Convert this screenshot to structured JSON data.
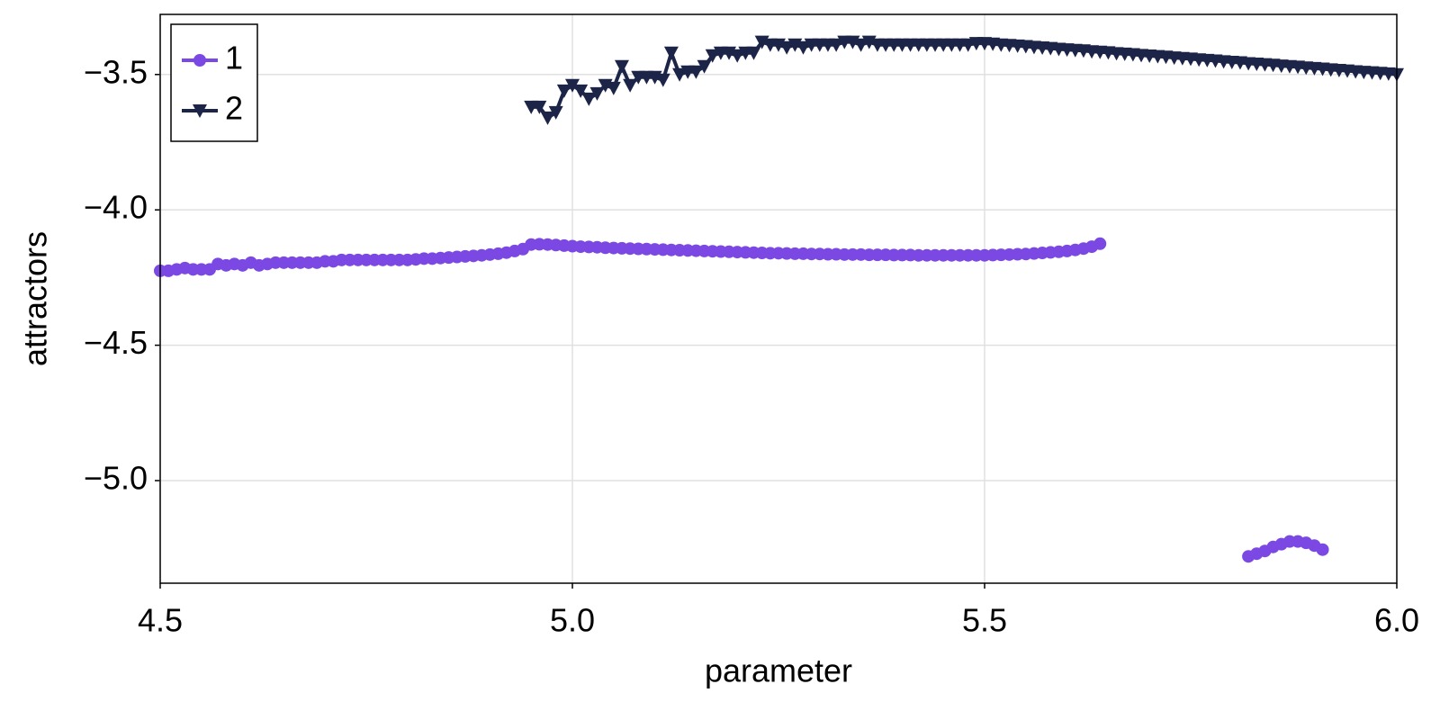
{
  "chart_data": {
    "type": "line",
    "x_label": "parameter",
    "y_label": "attractors",
    "x": [
      4.5,
      4.51,
      4.52,
      4.53,
      4.54,
      4.55,
      4.56,
      4.57,
      4.58,
      4.59,
      4.6,
      4.61,
      4.62,
      4.63,
      4.64,
      4.65,
      4.66,
      4.67,
      4.68,
      4.69,
      4.7,
      4.71,
      4.72,
      4.73,
      4.74,
      4.75,
      4.76,
      4.77,
      4.78,
      4.79,
      4.8,
      4.81,
      4.82,
      4.83,
      4.84,
      4.85,
      4.86,
      4.87,
      4.88,
      4.89,
      4.9,
      4.91,
      4.92,
      4.93,
      4.94,
      4.95,
      4.96,
      4.97,
      4.98,
      4.99,
      5.0,
      5.01,
      5.02,
      5.03,
      5.04,
      5.05,
      5.06,
      5.07,
      5.08,
      5.09,
      5.1,
      5.11,
      5.12,
      5.13,
      5.14,
      5.15,
      5.16,
      5.17,
      5.18,
      5.19,
      5.2,
      5.21,
      5.22,
      5.23,
      5.24,
      5.25,
      5.26,
      5.27,
      5.28,
      5.29,
      5.3,
      5.31,
      5.32,
      5.33,
      5.34,
      5.35,
      5.36,
      5.37,
      5.38,
      5.39,
      5.4,
      5.41,
      5.42,
      5.43,
      5.44,
      5.45,
      5.46,
      5.47,
      5.48,
      5.49,
      5.5,
      5.51,
      5.52,
      5.53,
      5.54,
      5.55,
      5.56,
      5.57,
      5.58,
      5.59,
      5.6,
      5.61,
      5.62,
      5.63,
      5.64,
      5.65,
      5.66,
      5.67,
      5.68,
      5.69,
      5.7,
      5.71,
      5.72,
      5.73,
      5.74,
      5.75,
      5.76,
      5.77,
      5.78,
      5.79,
      5.8,
      5.81,
      5.82,
      5.83,
      5.84,
      5.85,
      5.86,
      5.87,
      5.88,
      5.89,
      5.9,
      5.91,
      5.92,
      5.93,
      5.94,
      5.95,
      5.96,
      5.97,
      5.98,
      5.99,
      6.0
    ],
    "series": [
      {
        "name": "1",
        "color": "#7b48e4",
        "marker": "circle",
        "values": [
          -4.225,
          -4.225,
          -4.22,
          -4.215,
          -4.22,
          -4.22,
          -4.22,
          -4.2,
          -4.205,
          -4.2,
          -4.205,
          -4.195,
          -4.205,
          -4.2,
          -4.195,
          -4.195,
          -4.195,
          -4.195,
          -4.195,
          -4.195,
          -4.19,
          -4.19,
          -4.185,
          -4.185,
          -4.185,
          -4.185,
          -4.185,
          -4.185,
          -4.185,
          -4.185,
          -4.185,
          -4.183,
          -4.18,
          -4.18,
          -4.178,
          -4.176,
          -4.174,
          -4.172,
          -4.17,
          -4.168,
          -4.165,
          -4.162,
          -4.158,
          -4.152,
          -4.145,
          -4.128,
          -4.127,
          -4.128,
          -4.13,
          -4.132,
          -4.134,
          -4.136,
          -4.137,
          -4.138,
          -4.14,
          -4.141,
          -4.142,
          -4.143,
          -4.144,
          -4.145,
          -4.146,
          -4.147,
          -4.148,
          -4.149,
          -4.15,
          -4.151,
          -4.152,
          -4.153,
          -4.154,
          -4.155,
          -4.156,
          -4.157,
          -4.158,
          -4.159,
          -4.16,
          -4.16,
          -4.161,
          -4.162,
          -4.162,
          -4.163,
          -4.163,
          -4.164,
          -4.164,
          -4.165,
          -4.165,
          -4.165,
          -4.166,
          -4.166,
          -4.166,
          -4.167,
          -4.167,
          -4.167,
          -4.168,
          -4.168,
          -4.168,
          -4.168,
          -4.168,
          -4.168,
          -4.168,
          -4.168,
          -4.168,
          -4.167,
          -4.166,
          -4.165,
          -4.164,
          -4.163,
          -4.161,
          -4.159,
          -4.157,
          -4.155,
          -4.152,
          -4.148,
          -4.143,
          -4.136,
          -4.125,
          null,
          null,
          null,
          null,
          null,
          null,
          null,
          null,
          null,
          null,
          null,
          null,
          null,
          null,
          null,
          null,
          null,
          -5.28,
          -5.27,
          -5.26,
          -5.245,
          -5.235,
          -5.225,
          -5.225,
          -5.23,
          -5.24,
          -5.255,
          null,
          null,
          null,
          null,
          null,
          null,
          null,
          null,
          null
        ]
      },
      {
        "name": "2",
        "color": "#1c2448",
        "marker": "triangle-down",
        "values": [
          null,
          null,
          null,
          null,
          null,
          null,
          null,
          null,
          null,
          null,
          null,
          null,
          null,
          null,
          null,
          null,
          null,
          null,
          null,
          null,
          null,
          null,
          null,
          null,
          null,
          null,
          null,
          null,
          null,
          null,
          null,
          null,
          null,
          null,
          null,
          null,
          null,
          null,
          null,
          null,
          null,
          null,
          null,
          null,
          null,
          -3.62,
          -3.62,
          -3.66,
          -3.64,
          -3.56,
          -3.54,
          -3.56,
          -3.59,
          -3.57,
          -3.54,
          -3.55,
          -3.47,
          -3.54,
          -3.51,
          -3.51,
          -3.51,
          -3.52,
          -3.42,
          -3.5,
          -3.49,
          -3.49,
          -3.47,
          -3.43,
          -3.42,
          -3.42,
          -3.43,
          -3.42,
          -3.42,
          -3.38,
          -3.39,
          -3.39,
          -3.4,
          -3.39,
          -3.4,
          -3.39,
          -3.39,
          -3.39,
          -3.39,
          -3.38,
          -3.38,
          -3.39,
          -3.38,
          -3.39,
          -3.39,
          -3.39,
          -3.39,
          -3.39,
          -3.39,
          -3.39,
          -3.39,
          -3.39,
          -3.39,
          -3.39,
          -3.39,
          -3.385,
          -3.385,
          -3.387,
          -3.39,
          -3.392,
          -3.394,
          -3.396,
          -3.399,
          -3.401,
          -3.403,
          -3.406,
          -3.408,
          -3.41,
          -3.412,
          -3.415,
          -3.417,
          -3.419,
          -3.422,
          -3.424,
          -3.426,
          -3.429,
          -3.431,
          -3.433,
          -3.435,
          -3.438,
          -3.44,
          -3.442,
          -3.445,
          -3.447,
          -3.449,
          -3.452,
          -3.454,
          -3.456,
          -3.459,
          -3.461,
          -3.463,
          -3.465,
          -3.468,
          -3.47,
          -3.472,
          -3.475,
          -3.477,
          -3.479,
          -3.482,
          -3.484,
          -3.486,
          -3.489,
          -3.491,
          -3.493,
          -3.495,
          -3.497,
          -3.5
        ]
      }
    ],
    "xlim": [
      4.5,
      6.0
    ],
    "ylim": [
      -5.379,
      -3.278
    ],
    "xticks": [
      4.5,
      {
        "value": 5.0,
        "label": "5.0"
      },
      5.5,
      {
        "value": 6.0,
        "label": "6.0"
      }
    ],
    "yticks": [
      {
        "value": -5.0,
        "label": "−5.0"
      },
      {
        "value": -4.5,
        "label": "−4.5"
      },
      {
        "value": -4.0,
        "label": "−4.0"
      },
      {
        "value": -3.5,
        "label": "−3.5"
      }
    ],
    "grid": true,
    "legend": "top-left"
  }
}
